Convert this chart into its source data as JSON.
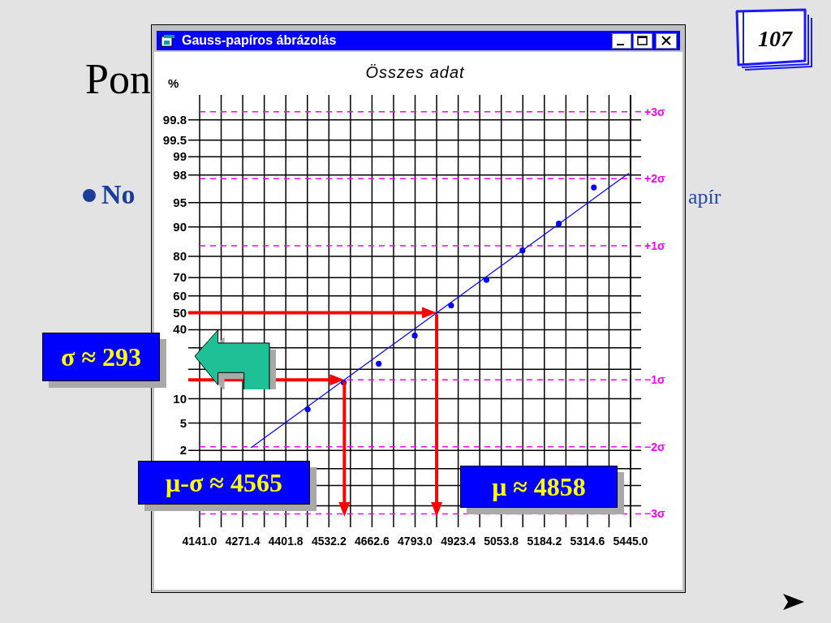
{
  "chart_data": {
    "type": "scatter",
    "title": "Gauss-papíros ábrázolás",
    "subtitle": "Összes adat",
    "xlim": [
      4141,
      5445
    ],
    "xticks": [
      {
        "value": 4141,
        "label": "4141.0"
      },
      {
        "value": 4206.2,
        "label": null
      },
      {
        "value": 4271.4,
        "label": "4271.4"
      },
      {
        "value": 4336.6,
        "label": null
      },
      {
        "value": 4401.8,
        "label": "4401.8"
      },
      {
        "value": 4467,
        "label": null
      },
      {
        "value": 4532.2,
        "label": "4532.2"
      },
      {
        "value": 4597.4,
        "label": null
      },
      {
        "value": 4662.6,
        "label": "4662.6"
      },
      {
        "value": 4727.8,
        "label": null
      },
      {
        "value": 4793,
        "label": "4793.0"
      },
      {
        "value": 4858.2,
        "label": null
      },
      {
        "value": 4923.4,
        "label": "4923.4"
      },
      {
        "value": 4988.6,
        "label": null
      },
      {
        "value": 5053.8,
        "label": "5053.8"
      },
      {
        "value": 5119,
        "label": null
      },
      {
        "value": 5184.2,
        "label": "5184.2"
      },
      {
        "value": 5249.4,
        "label": null
      },
      {
        "value": 5314.6,
        "label": "5314.6"
      },
      {
        "value": 5379.8,
        "label": null
      },
      {
        "value": 5445,
        "label": "5445.0"
      }
    ],
    "ylim": [
      -3.2,
      3.25
    ],
    "yticks": [
      {
        "value": 3,
        "label": "+3σ"
      },
      {
        "value": 2,
        "label": "+2σ"
      },
      {
        "value": 1,
        "label": "+1σ"
      },
      {
        "value": -1,
        "label": "−1σ"
      },
      {
        "value": -2,
        "label": "−2σ"
      },
      {
        "value": -3,
        "label": "−3σ"
      }
    ],
    "grid": true,
    "marker": "circle",
    "series": [
      {
        "color": "#0000ff",
        "x": [
          4468,
          4577,
          4683,
          4792,
          4902,
          5009,
          5118,
          5228,
          5334
        ],
        "values": [
          -1.44,
          -1.04,
          -0.76,
          -0.34,
          0.11,
          0.49,
          0.93,
          1.33,
          1.87
        ]
      },
      {
        "type": "line",
        "color": "#0000ff",
        "marker": "none",
        "x": [
          4297,
          5439
        ],
        "values": [
          -2.01,
          2.08
        ]
      }
    ],
    "ref_lines": [
      {
        "axis": "y",
        "value": 2.878,
        "color": "#000000"
      },
      {
        "axis": "y",
        "value": 2.576,
        "color": "#000000"
      },
      {
        "axis": "y",
        "value": 2.326,
        "color": "#000000"
      },
      {
        "axis": "y",
        "value": 2.054,
        "color": "#000000"
      },
      {
        "axis": "y",
        "value": 1.645,
        "color": "#000000"
      },
      {
        "axis": "y",
        "value": 1.282,
        "color": "#000000"
      },
      {
        "axis": "y",
        "value": 0.842,
        "color": "#000000"
      },
      {
        "axis": "y",
        "value": 0.524,
        "color": "#000000"
      },
      {
        "axis": "y",
        "value": 0.253,
        "color": "#000000"
      },
      {
        "axis": "y",
        "value": 0,
        "color": "#000000"
      },
      {
        "axis": "y",
        "value": -0.253,
        "color": "#000000"
      },
      {
        "axis": "y",
        "value": -0.524,
        "color": "#000000"
      },
      {
        "axis": "y",
        "value": -0.842,
        "color": "#000000"
      },
      {
        "axis": "y",
        "value": -1.282,
        "color": "#000000"
      },
      {
        "axis": "y",
        "value": -1.645,
        "color": "#000000"
      },
      {
        "axis": "y",
        "value": -2.054,
        "color": "#000000"
      },
      {
        "axis": "y",
        "value": -2.326,
        "color": "#000000"
      },
      {
        "axis": "y",
        "value": -2.576,
        "color": "#000000"
      },
      {
        "axis": "y",
        "value": -2.878,
        "color": "#000000"
      }
    ],
    "annotations": [
      "σ ≈ 293",
      "μ-σ ≈ 4565",
      "μ ≈ 4858",
      "107",
      "Pon",
      "No",
      "apír",
      "%",
      "99.8",
      "99.5",
      "99",
      "98",
      "95",
      "90",
      "80",
      "70",
      "60",
      "50",
      "40",
      "10",
      "5",
      "2"
    ]
  }
}
